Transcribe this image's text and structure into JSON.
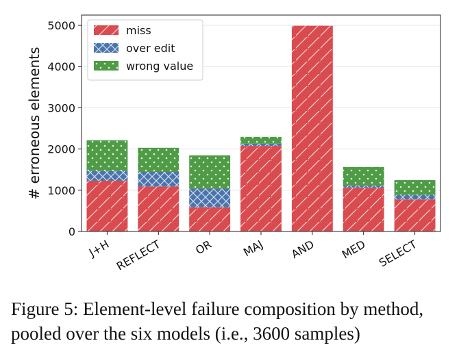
{
  "chart_data": {
    "type": "stacked-bar",
    "categories": [
      "J+H",
      "REFLECT",
      "OR",
      "MAJ",
      "AND",
      "MED",
      "SELECT"
    ],
    "series": [
      {
        "name": "miss",
        "color": "#d94b4f",
        "pattern": "diagonal-hatch",
        "values": [
          1230,
          1090,
          585,
          2075,
          4990,
          1060,
          775
        ]
      },
      {
        "name": "over edit",
        "color": "#4a74ad",
        "pattern": "cross-hatch",
        "values": [
          235,
          355,
          455,
          55,
          0,
          55,
          110
        ]
      },
      {
        "name": "wrong value",
        "color": "#4f9b46",
        "pattern": "dots",
        "values": [
          745,
          585,
          805,
          165,
          0,
          450,
          360
        ]
      }
    ],
    "ylabel": "# erroneous elements",
    "xlabel": "",
    "ylim": [
      0,
      5250
    ],
    "yticks": [
      0,
      1000,
      2000,
      3000,
      4000,
      5000
    ],
    "xtick_rotation": -30,
    "grid": "horizontal",
    "legend_position": "top-left"
  },
  "caption": {
    "line1": "Figure 5: Element-level failure composition by method,",
    "line2": "pooled over the six models (i.e., 3600 samples)"
  }
}
